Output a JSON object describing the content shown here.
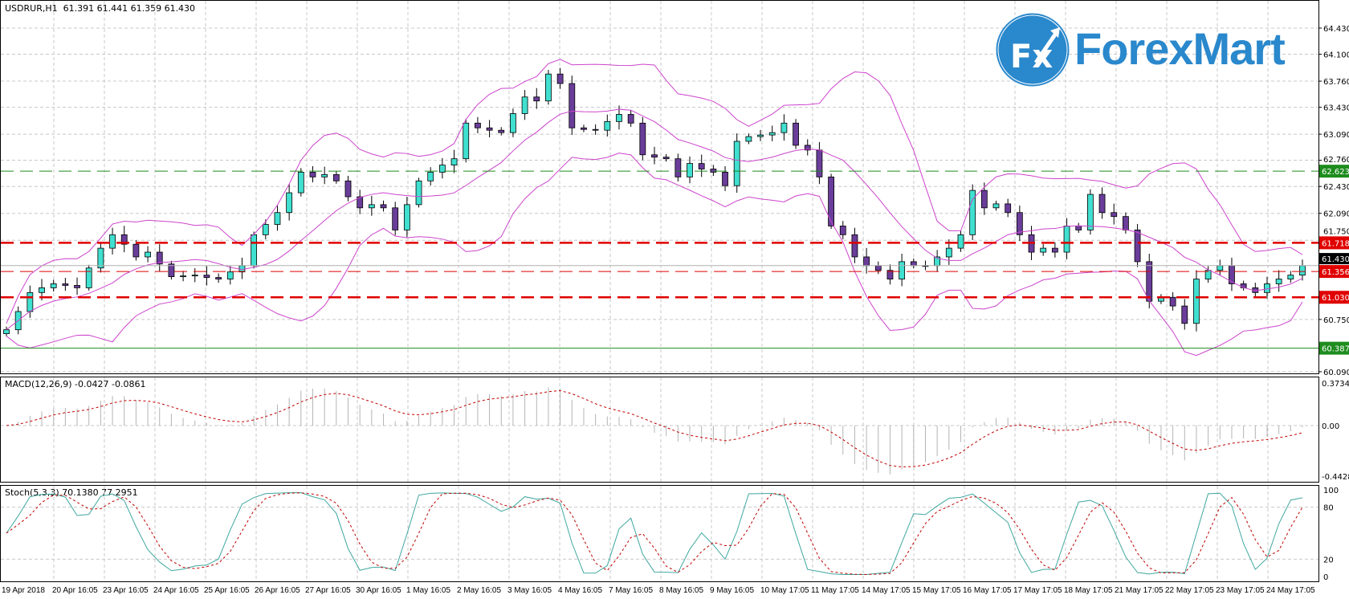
{
  "header": {
    "symbol": "USDRUR,H1",
    "ohlc": "61.391 61.441 61.359 61.430"
  },
  "logo": {
    "mark": "Fx",
    "text": "ForexMart"
  },
  "price_axis": [
    "64.430",
    "64.100",
    "63.760",
    "63.430",
    "63.090",
    "62.760",
    "62.430",
    "62.090",
    "61.750",
    "60.750",
    "60.090"
  ],
  "levels": [
    {
      "label": "62.623",
      "value": 62.623,
      "color": "#1e8c1e",
      "style": "dash-thin"
    },
    {
      "label": "61.718",
      "value": 61.718,
      "color": "#e00000",
      "style": "dash-thick"
    },
    {
      "label": "61.356",
      "value": 61.356,
      "color": "#e00000",
      "style": "dash-thin"
    },
    {
      "label": "61.030",
      "value": 61.03,
      "color": "#e00000",
      "style": "dash-thick"
    },
    {
      "label": "60.387",
      "value": 60.387,
      "color": "#1e8c1e",
      "style": "solid"
    }
  ],
  "current_price": {
    "label": "61.430",
    "value": 61.43
  },
  "macd": {
    "label": "MACD(12,26,9) -0.0427 -0.0861",
    "axis": [
      "0.3734",
      "0.00",
      "-0.4428"
    ]
  },
  "stoch": {
    "label": "Stoch(5,3,3) 70.1380 77.2951",
    "axis": [
      "100",
      "80",
      "20",
      "0"
    ]
  },
  "time_axis": [
    "19 Apr 2018",
    "20 Apr 16:05",
    "23 Apr 16:05",
    "24 Apr 16:05",
    "25 Apr 16:05",
    "26 Apr 16:05",
    "27 Apr 16:05",
    "30 Apr 16:05",
    "1 May 16:05",
    "2 May 16:05",
    "3 May 16:05",
    "4 May 16:05",
    "7 May 16:05",
    "8 May 16:05",
    "9 May 16:05",
    "10 May 17:05",
    "11 May 17:05",
    "14 May 17:05",
    "15 May 17:05",
    "16 May 17:05",
    "17 May 17:05",
    "18 May 17:05",
    "21 May 17:05",
    "22 May 17:05",
    "23 May 17:05",
    "24 May 17:05"
  ],
  "colors": {
    "bull": "#40e0d0",
    "bear": "#6a3d9a",
    "bands": "#cc44cc",
    "stoch_k": "#3fa7a0",
    "signal": "#c00000",
    "logo": "#2a88cc"
  },
  "chart_data": {
    "type": "candlestick",
    "title": "USDRUR,H1",
    "ylim": [
      60.09,
      64.43
    ],
    "closes": [
      60.62,
      60.85,
      61.09,
      61.15,
      61.2,
      61.18,
      61.15,
      61.4,
      61.65,
      61.82,
      61.7,
      61.54,
      61.6,
      61.45,
      61.29,
      61.3,
      61.31,
      61.28,
      61.26,
      61.35,
      61.43,
      61.82,
      61.95,
      62.1,
      62.35,
      62.61,
      62.55,
      62.58,
      62.5,
      62.3,
      62.16,
      62.2,
      62.16,
      61.88,
      62.2,
      62.5,
      62.61,
      62.7,
      62.78,
      63.23,
      63.17,
      63.14,
      63.11,
      63.35,
      63.56,
      63.51,
      63.85,
      63.73,
      63.17,
      63.15,
      63.14,
      63.25,
      63.34,
      63.23,
      62.83,
      62.8,
      62.78,
      62.55,
      62.72,
      62.65,
      62.61,
      62.44,
      63.0,
      63.06,
      63.08,
      63.11,
      63.23,
      62.95,
      62.89,
      62.55,
      61.93,
      61.82,
      61.54,
      61.43,
      61.37,
      61.26,
      61.48,
      61.43,
      61.43,
      61.54,
      61.65,
      61.82,
      62.38,
      62.16,
      62.21,
      62.1,
      61.82,
      61.6,
      61.65,
      61.6,
      61.93,
      61.88,
      62.33,
      62.1,
      62.05,
      61.88,
      61.48,
      60.98,
      61.03,
      60.92,
      60.7,
      61.26,
      61.37,
      61.43,
      61.2,
      61.15,
      61.09,
      61.2,
      61.26,
      61.31,
      61.43
    ]
  }
}
